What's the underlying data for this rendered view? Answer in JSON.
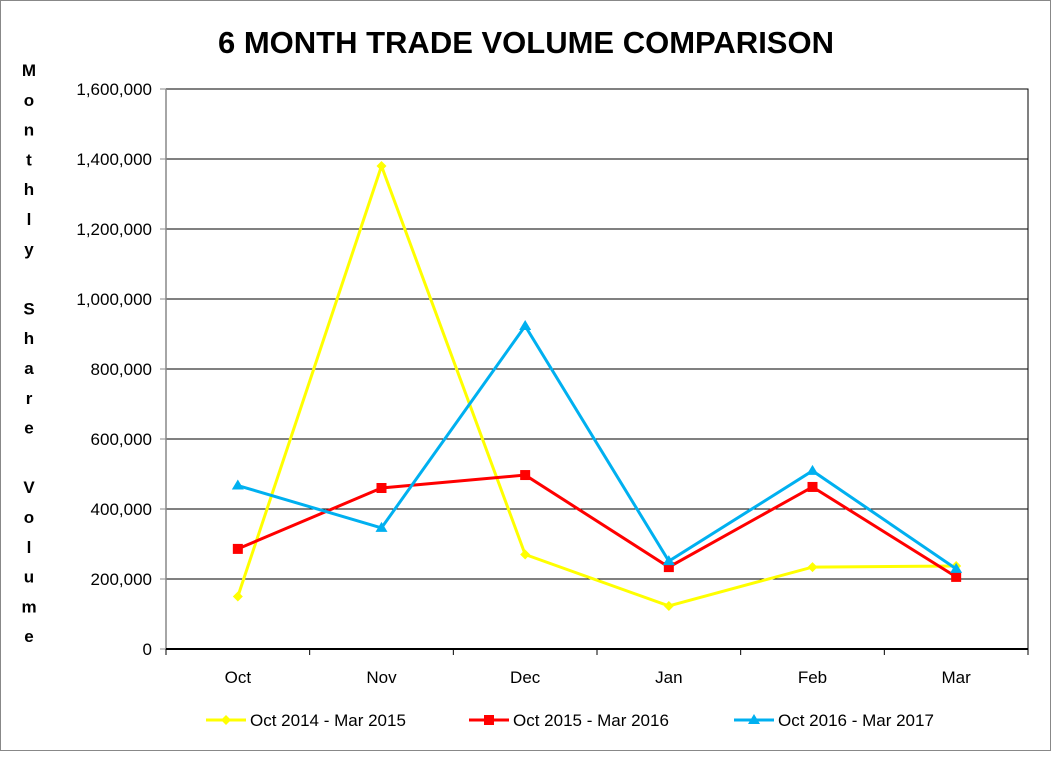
{
  "chart_data": {
    "type": "line",
    "title": "6 MONTH TRADE VOLUME COMPARISON",
    "ylabel": "Monthly Share Volume",
    "xlabel": "",
    "categories": [
      "Oct",
      "Nov",
      "Dec",
      "Jan",
      "Feb",
      "Mar"
    ],
    "ylim": [
      0,
      1600000
    ],
    "yticks": [
      0,
      200000,
      400000,
      600000,
      800000,
      1000000,
      1200000,
      1400000,
      1600000
    ],
    "ytick_labels": [
      "0",
      "200,000",
      "400,000",
      "600,000",
      "800,000",
      "1,000,000",
      "1,200,000",
      "1,400,000",
      "1,600,000"
    ],
    "grid": true,
    "legend_position": "bottom",
    "series": [
      {
        "name": "Oct 2014 - Mar 2015",
        "color": "#FFFF00",
        "marker": "diamond",
        "values": [
          150000,
          1380000,
          270000,
          123000,
          234000,
          237000
        ]
      },
      {
        "name": "Oct 2015 - Mar 2016",
        "color": "#FF0000",
        "marker": "square",
        "values": [
          286000,
          460000,
          497000,
          234000,
          463000,
          206000
        ]
      },
      {
        "name": "Oct 2016 - Mar 2017",
        "color": "#00B0F0",
        "marker": "triangle",
        "values": [
          467000,
          346000,
          923000,
          251000,
          509000,
          229000
        ]
      }
    ]
  }
}
